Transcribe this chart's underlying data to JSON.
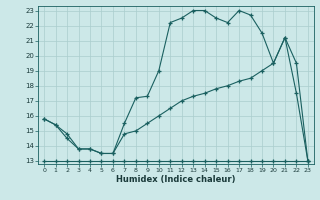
{
  "xlabel": "Humidex (Indice chaleur)",
  "bg_color": "#cce8e8",
  "grid_color": "#aacece",
  "line_color": "#1a6060",
  "xlim": [
    -0.5,
    23.5
  ],
  "ylim": [
    12.8,
    23.3
  ],
  "xticks": [
    0,
    1,
    2,
    3,
    4,
    5,
    6,
    7,
    8,
    9,
    10,
    11,
    12,
    13,
    14,
    15,
    16,
    17,
    18,
    19,
    20,
    21,
    22,
    23
  ],
  "yticks": [
    13,
    14,
    15,
    16,
    17,
    18,
    19,
    20,
    21,
    22,
    23
  ],
  "line1_x": [
    0,
    1,
    2,
    3,
    4,
    5,
    6,
    7,
    8,
    9,
    10,
    11,
    12,
    13,
    14,
    15,
    16,
    17,
    18,
    19,
    20,
    21,
    22,
    23
  ],
  "line1_y": [
    13.0,
    13.0,
    13.0,
    13.0,
    13.0,
    13.0,
    13.0,
    13.0,
    13.0,
    13.0,
    13.0,
    13.0,
    13.0,
    13.0,
    13.0,
    13.0,
    13.0,
    13.0,
    13.0,
    13.0,
    13.0,
    13.0,
    13.0,
    13.0
  ],
  "line2_x": [
    0,
    1,
    2,
    3,
    4,
    5,
    6,
    7,
    8,
    9,
    10,
    11,
    12,
    13,
    14,
    15,
    16,
    17,
    18,
    19,
    20,
    21,
    22,
    23
  ],
  "line2_y": [
    15.8,
    15.4,
    14.8,
    13.8,
    13.8,
    13.5,
    13.5,
    14.8,
    15.0,
    15.5,
    16.0,
    16.5,
    17.0,
    17.3,
    17.5,
    17.8,
    18.0,
    18.3,
    18.5,
    19.0,
    19.5,
    21.2,
    19.5,
    13.0
  ],
  "line3_x": [
    0,
    1,
    2,
    3,
    4,
    5,
    6,
    7,
    8,
    9,
    10,
    11,
    12,
    13,
    14,
    15,
    16,
    17,
    18,
    19,
    20,
    21,
    22,
    23
  ],
  "line3_y": [
    15.8,
    15.4,
    14.5,
    13.8,
    13.8,
    13.5,
    13.5,
    15.5,
    17.2,
    17.3,
    19.0,
    22.2,
    22.5,
    23.0,
    23.0,
    22.5,
    22.2,
    23.0,
    22.7,
    21.5,
    19.5,
    21.2,
    17.5,
    13.0
  ]
}
